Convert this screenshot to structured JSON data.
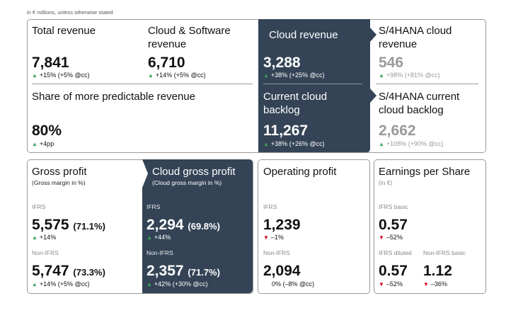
{
  "note": "in € millions, unless otherwise stated",
  "top": {
    "total_revenue": {
      "title": "Total revenue",
      "value": "7,841",
      "change": "+15% (+5% @cc)"
    },
    "cloud_software_revenue": {
      "title": "Cloud & Software revenue",
      "value": "6,710",
      "change": "+14% (+5% @cc)"
    },
    "cloud_revenue": {
      "title": "Cloud revenue",
      "value": "3,288",
      "change": "+38% (+25% @cc)"
    },
    "s4_cloud_revenue": {
      "title": "S/4HANA cloud revenue",
      "value": "546",
      "change": "+98% (+81% @cc)"
    },
    "predictable_revenue": {
      "title": "Share of more predictable revenue",
      "value": "80%",
      "change": "+4pp"
    },
    "current_cloud_backlog": {
      "title": "Current cloud backlog",
      "value": "11,267",
      "change": "+38% (+26% @cc)"
    },
    "s4_current_cloud_backlog": {
      "title": "S/4HANA current cloud backlog",
      "value": "2,662",
      "change": "+108% (+90% @cc)"
    }
  },
  "gross_profit": {
    "title": "Gross profit",
    "subtitle": "(Gross margin in %)",
    "ifrs_label": "IFRS",
    "ifrs_value": "5,575",
    "ifrs_margin": "(71.1%)",
    "ifrs_change": "+14%",
    "nonifrs_label": "Non-IFRS",
    "nonifrs_value": "5,747",
    "nonifrs_margin": "(73.3%)",
    "nonifrs_change": "+14% (+5% @cc)"
  },
  "cloud_gross_profit": {
    "title": "Cloud gross profit",
    "subtitle": "(Cloud gross margin in %)",
    "ifrs_label": "IFRS",
    "ifrs_value": "2,294",
    "ifrs_margin": "(69.8%)",
    "ifrs_change": "+44%",
    "nonifrs_label": "Non-IFRS",
    "nonifrs_value": "2,357",
    "nonifrs_margin": "(71.7%)",
    "nonifrs_change": "+42% (+30% @cc)"
  },
  "operating_profit": {
    "title": "Operating profit",
    "ifrs_label": "IFRS",
    "ifrs_value": "1,239",
    "ifrs_change": "–1%",
    "nonifrs_label": "Non-IFRS",
    "nonifrs_value": "2,094",
    "nonifrs_change": "0% (–8% @cc)"
  },
  "eps": {
    "title": "Earnings per Share",
    "subtitle": "(in €)",
    "basic_label": "IFRS basic",
    "basic_value": "0.57",
    "basic_change": "–52%",
    "diluted_label": "IFRS diluted",
    "diluted_value": "0.57",
    "diluted_change": "–52%",
    "nonifrs_basic_label": "Non-IFRS basic",
    "nonifrs_basic_value": "1.12",
    "nonifrs_basic_change": "–36%"
  },
  "colors": {
    "dark_panel": "#344456",
    "up_arrow": "#3aa35b",
    "down_arrow": "#d0021b"
  }
}
